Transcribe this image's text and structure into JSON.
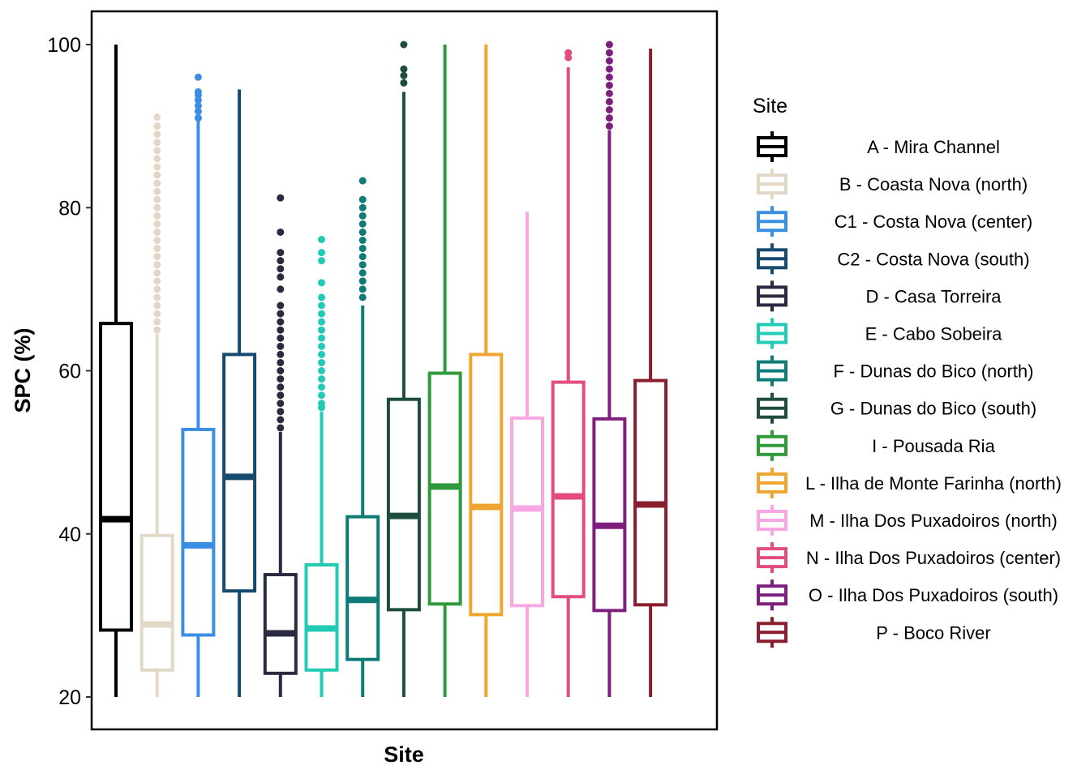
{
  "chart_data": {
    "type": "boxplot",
    "xlabel": "Site",
    "ylabel": "SPC (%)",
    "ylim": [
      20,
      100
    ],
    "yticks": [
      20,
      40,
      60,
      80,
      100
    ],
    "legend_title": "Site",
    "legend_position": "right",
    "grid": false,
    "series": [
      {
        "name": "A - Mira Channel",
        "color": "#000000",
        "whisker_low": 20,
        "q1": 28.2,
        "median": 41.8,
        "q3": 65.8,
        "whisker_high": 100,
        "outliers": []
      },
      {
        "name": "B - Coasta Nova (north)",
        "color": "#E2D8C6",
        "whisker_low": 20,
        "q1": 23.3,
        "median": 28.9,
        "q3": 39.8,
        "whisker_high": 64.5,
        "outliers": [
          65,
          66,
          67,
          68,
          69,
          70,
          71,
          72,
          73,
          74,
          75,
          76,
          77,
          78,
          79,
          80,
          81,
          82,
          83,
          84,
          85,
          86,
          87,
          88,
          89,
          90,
          91.1
        ]
      },
      {
        "name": "C1 - Costa Nova (center)",
        "color": "#3B8FE3",
        "whisker_low": 20,
        "q1": 27.6,
        "median": 38.6,
        "q3": 52.8,
        "whisker_high": 90.8,
        "outliers": [
          91,
          91.8,
          92.5,
          93.2,
          93.8,
          94.2,
          96
        ]
      },
      {
        "name": "C2 - Costa Nova (south)",
        "color": "#164A6E",
        "whisker_low": 20,
        "q1": 33,
        "median": 47,
        "q3": 62,
        "whisker_high": 94.5,
        "outliers": []
      },
      {
        "name": "D - Casa Torreira",
        "color": "#2A2A40",
        "whisker_low": 20,
        "q1": 22.9,
        "median": 27.8,
        "q3": 35,
        "whisker_high": 52.5,
        "outliers": [
          53,
          54,
          55,
          56,
          57,
          58,
          59,
          60,
          61,
          62,
          63,
          64,
          65,
          66,
          67,
          68,
          70,
          71.5,
          72.5,
          73.5,
          74.5,
          77,
          81.2
        ]
      },
      {
        "name": "E - Cabo Sobeira",
        "color": "#22CCB4",
        "whisker_low": 20,
        "q1": 23.3,
        "median": 28.4,
        "q3": 36.2,
        "whisker_high": 55,
        "outliers": [
          55.5,
          56,
          57,
          58,
          59,
          60,
          61,
          62,
          63,
          64,
          65,
          66,
          67,
          68,
          69,
          70.8,
          73.5,
          74.5,
          76.1
        ]
      },
      {
        "name": "F - Dunas do Bico (north)",
        "color": "#0E7B77",
        "whisker_low": 20,
        "q1": 24.6,
        "median": 31.9,
        "q3": 42.1,
        "whisker_high": 68,
        "outliers": [
          69,
          70,
          71,
          72,
          73,
          74,
          75,
          76,
          77,
          78,
          79,
          80,
          81,
          83.3
        ]
      },
      {
        "name": "G - Dunas do Bico (south)",
        "color": "#1E4D40",
        "whisker_low": 20,
        "q1": 30.7,
        "median": 42.2,
        "q3": 56.5,
        "whisker_high": 94.2,
        "outliers": [
          95.3,
          96.2,
          97,
          100
        ]
      },
      {
        "name": "I - Pousada Ria",
        "color": "#2E9A3A",
        "whisker_low": 20,
        "q1": 31.4,
        "median": 45.8,
        "q3": 59.7,
        "whisker_high": 100,
        "outliers": []
      },
      {
        "name": "L - Ilha de Monte Farinha (north)",
        "color": "#F0A530",
        "whisker_low": 20,
        "q1": 30.1,
        "median": 43.3,
        "q3": 62,
        "whisker_high": 100,
        "outliers": []
      },
      {
        "name": "M - Ilha Dos Puxadoiros (north)",
        "color": "#F7A8E4",
        "whisker_low": 20,
        "q1": 31.2,
        "median": 43.1,
        "q3": 54.2,
        "whisker_high": 79.5,
        "outliers": []
      },
      {
        "name": "N - Ilha Dos Puxadoiros (center)",
        "color": "#E24C7E",
        "whisker_low": 20,
        "q1": 32.3,
        "median": 44.6,
        "q3": 58.6,
        "whisker_high": 97.2,
        "outliers": [
          98.4,
          99
        ]
      },
      {
        "name": "O - Ilha Dos Puxadoiros (south)",
        "color": "#7E1F7E",
        "whisker_low": 20,
        "q1": 30.6,
        "median": 41,
        "q3": 54.1,
        "whisker_high": 89.5,
        "outliers": [
          90,
          91,
          92,
          93,
          94,
          95,
          96,
          97,
          98,
          99,
          100
        ]
      },
      {
        "name": "P - Boco River",
        "color": "#8A1E2E",
        "whisker_low": 20,
        "q1": 31.3,
        "median": 43.6,
        "q3": 58.8,
        "whisker_high": 99.5,
        "outliers": []
      }
    ]
  }
}
